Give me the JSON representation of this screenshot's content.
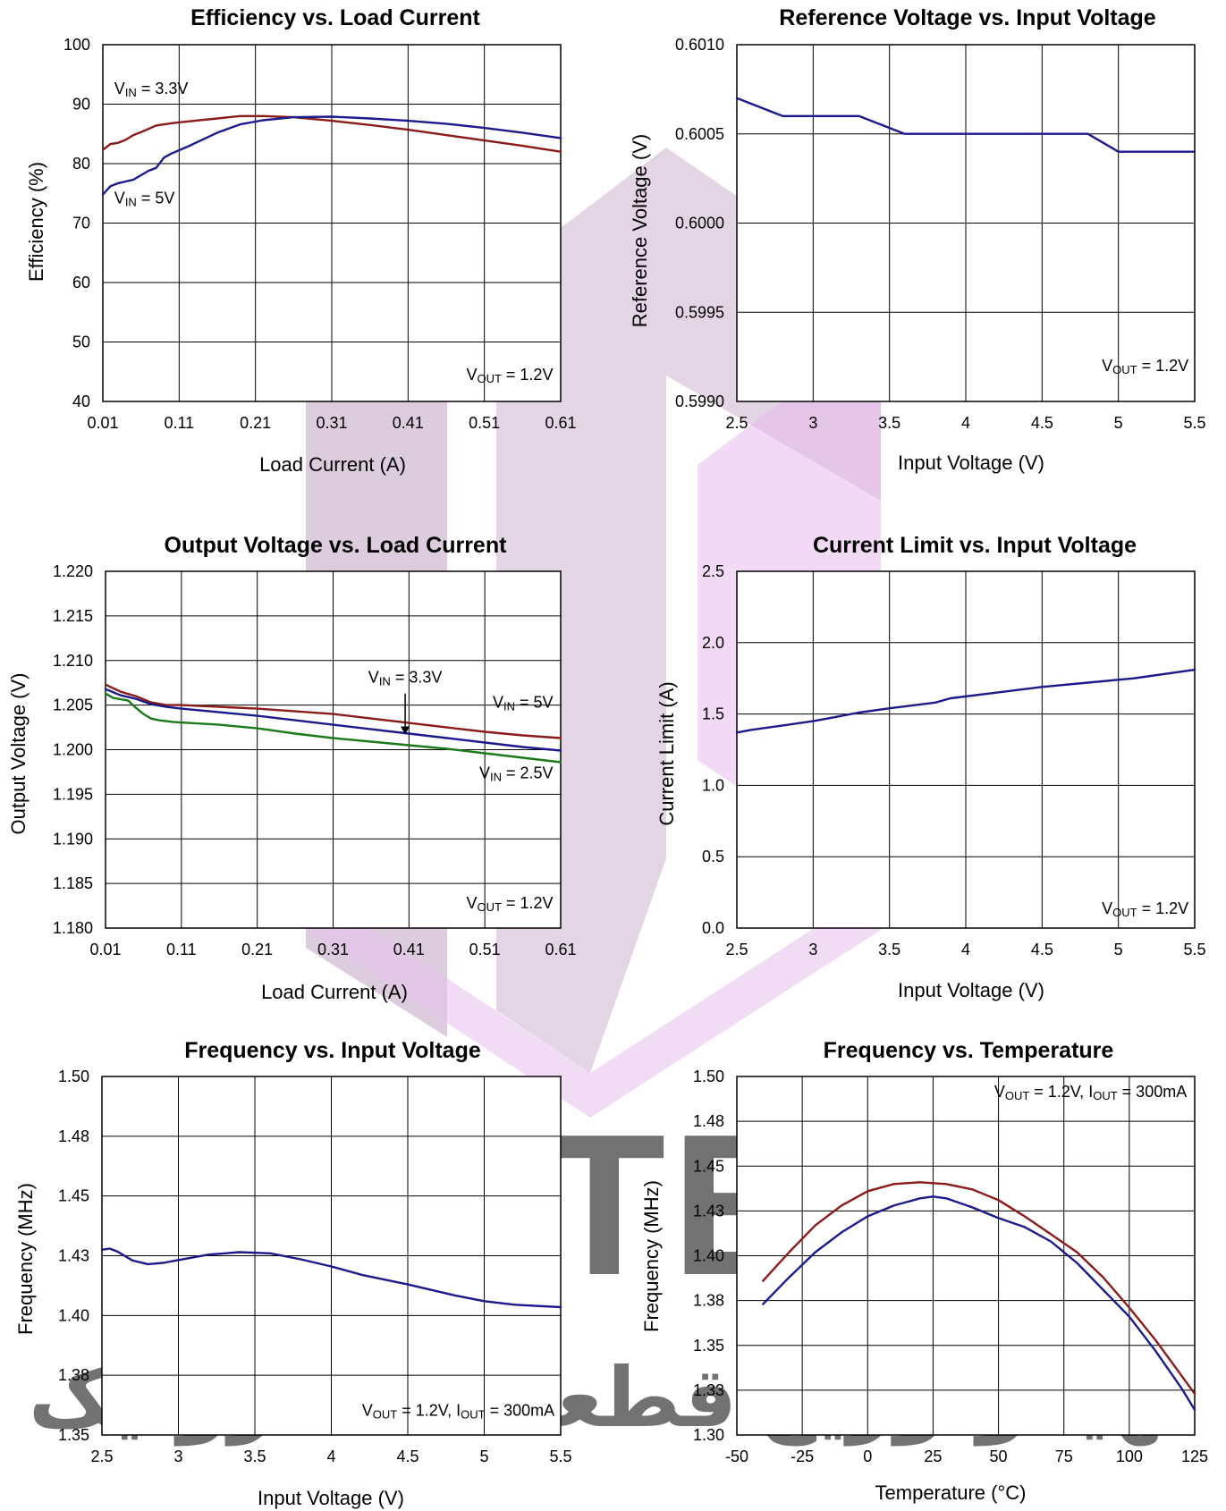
{
  "watermark": {
    "text": "SKYTECH",
    "subtitle": "تهیه‌وتوزیع قطعات الکترونیک"
  },
  "chart_data": [
    {
      "id": "c1",
      "type": "line",
      "title": "Efficiency vs. Load Current",
      "xlabel": "Load Current (A)",
      "ylabel": "Efficiency (%)",
      "xlim": [
        0.01,
        0.61
      ],
      "ylim": [
        40,
        100
      ],
      "xticks": [
        0.01,
        0.11,
        0.21,
        0.31,
        0.41,
        0.51,
        0.61
      ],
      "xtick_labels": [
        "0.01",
        "0.11",
        "0.21",
        "0.31",
        "0.41",
        "0.51",
        "0.61"
      ],
      "yticks": [
        40,
        50,
        60,
        70,
        80,
        90,
        100
      ],
      "ytick_labels": [
        "40",
        "50",
        "60",
        "70",
        "80",
        "90",
        "100"
      ],
      "grid": true,
      "annotations": [
        {
          "main": "V",
          "sub": "IN",
          "rest": " = 3.3V",
          "x": 0.025,
          "y": 91.7,
          "anchor": "start"
        },
        {
          "main": "V",
          "sub": "IN",
          "rest": " = 5V",
          "x": 0.025,
          "y": 73.3,
          "anchor": "start"
        },
        {
          "main": "V",
          "sub": "OUT",
          "rest": " = 1.2V",
          "x": 0.6,
          "y": 43.6,
          "anchor": "end"
        }
      ],
      "series": [
        {
          "color": "#8b1a1a",
          "x": [
            0.01,
            0.02,
            0.03,
            0.04,
            0.05,
            0.06,
            0.08,
            0.1,
            0.13,
            0.16,
            0.19,
            0.22,
            0.26,
            0.31,
            0.36,
            0.41,
            0.46,
            0.51,
            0.56,
            0.61
          ],
          "y": [
            82.3,
            83.3,
            83.5,
            84.0,
            84.8,
            85.3,
            86.4,
            86.8,
            87.2,
            87.6,
            88.0,
            88.0,
            87.8,
            87.2,
            86.5,
            85.7,
            84.8,
            83.9,
            83.0,
            82.0
          ]
        },
        {
          "color": "#1a1a8c",
          "x": [
            0.01,
            0.02,
            0.03,
            0.05,
            0.07,
            0.08,
            0.09,
            0.1,
            0.12,
            0.14,
            0.16,
            0.19,
            0.22,
            0.26,
            0.31,
            0.36,
            0.41,
            0.46,
            0.51,
            0.56,
            0.61
          ],
          "y": [
            74.8,
            76.2,
            76.7,
            77.3,
            78.8,
            79.3,
            81.0,
            81.7,
            82.8,
            84.0,
            85.2,
            86.6,
            87.3,
            87.8,
            87.9,
            87.6,
            87.2,
            86.7,
            86.0,
            85.2,
            84.3
          ]
        }
      ]
    },
    {
      "id": "c2",
      "type": "line",
      "title": "Reference Voltage vs. Input Voltage",
      "xlabel": "Input Voltage (V)",
      "ylabel": "Reference Voltage (V)",
      "xlim": [
        2.5,
        5.5
      ],
      "ylim": [
        0.599,
        0.601
      ],
      "xticks": [
        2.5,
        3,
        3.5,
        4,
        4.5,
        5,
        5.5
      ],
      "xtick_labels": [
        "2.5",
        "3",
        "3.5",
        "4",
        "4.5",
        "5",
        "5.5"
      ],
      "yticks": [
        0.599,
        0.5995,
        0.6,
        0.6005,
        0.601
      ],
      "ytick_labels": [
        "0.5990",
        "0.5995",
        "0.6000",
        "0.6005",
        "0.6010"
      ],
      "grid": true,
      "annotations": [
        {
          "main": "V",
          "sub": "OUT",
          "rest": " = 1.2V",
          "x": 5.46,
          "y": 0.59917,
          "anchor": "end"
        }
      ],
      "series": [
        {
          "color": "#1a1a8c",
          "x": [
            2.5,
            2.8,
            3.3,
            3.6,
            4.8,
            5.0,
            5.5
          ],
          "y": [
            0.6007,
            0.6006,
            0.6006,
            0.6005,
            0.6005,
            0.6004,
            0.6004
          ]
        }
      ]
    },
    {
      "id": "c3",
      "type": "line",
      "title": "Output Voltage vs. Load Current",
      "xlabel": "Load Current (A)",
      "ylabel": "Output Voltage (V)",
      "xlim": [
        0.01,
        0.61
      ],
      "ylim": [
        1.18,
        1.22
      ],
      "xticks": [
        0.01,
        0.11,
        0.21,
        0.31,
        0.41,
        0.51,
        0.61
      ],
      "xtick_labels": [
        "0.01",
        "0.11",
        "0.21",
        "0.31",
        "0.41",
        "0.51",
        "0.61"
      ],
      "yticks": [
        1.18,
        1.185,
        1.19,
        1.195,
        1.2,
        1.205,
        1.21,
        1.215,
        1.22
      ],
      "ytick_labels": [
        "1.180",
        "1.185",
        "1.190",
        "1.195",
        "1.200",
        "1.205",
        "1.210",
        "1.215",
        "1.220"
      ],
      "grid": true,
      "annotations": [
        {
          "main": "V",
          "sub": "IN",
          "rest": " = 3.3V",
          "x": 0.405,
          "y": 1.2075,
          "anchor": "middle"
        },
        {
          "main": "V",
          "sub": "IN",
          "rest": " = 5V",
          "x": 0.6,
          "y": 1.2047,
          "anchor": "end"
        },
        {
          "main": "V",
          "sub": "IN",
          "rest": " = 2.5V",
          "x": 0.6,
          "y": 1.1968,
          "anchor": "end"
        },
        {
          "main": "V",
          "sub": "OUT",
          "rest": " = 1.2V",
          "x": 0.6,
          "y": 1.1822,
          "anchor": "end"
        }
      ],
      "arrow": {
        "x": 0.405,
        "y1": 1.2063,
        "y2": 1.2017
      },
      "series": [
        {
          "color": "#8b1a1a",
          "x": [
            0.01,
            0.03,
            0.05,
            0.07,
            0.09,
            0.11,
            0.16,
            0.21,
            0.26,
            0.31,
            0.36,
            0.41,
            0.46,
            0.51,
            0.56,
            0.61
          ],
          "y": [
            1.2073,
            1.2065,
            1.206,
            1.2053,
            1.205,
            1.205,
            1.2048,
            1.2046,
            1.2043,
            1.204,
            1.2035,
            1.203,
            1.2025,
            1.202,
            1.2016,
            1.2013
          ]
        },
        {
          "color": "#1a1a8c",
          "x": [
            0.01,
            0.03,
            0.05,
            0.07,
            0.09,
            0.11,
            0.16,
            0.21,
            0.26,
            0.31,
            0.36,
            0.41,
            0.46,
            0.51,
            0.56,
            0.61
          ],
          "y": [
            1.2068,
            1.2061,
            1.2057,
            1.2051,
            1.2048,
            1.2046,
            1.2042,
            1.2038,
            1.2033,
            1.2028,
            1.2023,
            1.2018,
            1.2013,
            1.2008,
            1.2003,
            1.1999
          ]
        },
        {
          "color": "#1a7a1a",
          "x": [
            0.01,
            0.02,
            0.04,
            0.05,
            0.06,
            0.07,
            0.08,
            0.1,
            0.12,
            0.16,
            0.21,
            0.26,
            0.31,
            0.36,
            0.41,
            0.46,
            0.51,
            0.56,
            0.61
          ],
          "y": [
            1.2063,
            1.2058,
            1.2055,
            1.2047,
            1.204,
            1.2035,
            1.2033,
            1.2031,
            1.203,
            1.2028,
            1.2024,
            1.2018,
            1.2013,
            1.2009,
            1.2005,
            1.2001,
            1.1996,
            1.1991,
            1.1986
          ]
        }
      ]
    },
    {
      "id": "c4",
      "type": "line",
      "title": "Current Limit vs. Input Voltage",
      "xlabel": "Input Voltage (V)",
      "ylabel": "Current Limit (A)",
      "xlim": [
        2.5,
        5.5
      ],
      "ylim": [
        0,
        2.5
      ],
      "xticks": [
        2.5,
        3,
        3.5,
        4,
        4.5,
        5,
        5.5
      ],
      "xtick_labels": [
        "2.5",
        "3",
        "3.5",
        "4",
        "4.5",
        "5",
        "5.5"
      ],
      "yticks": [
        0,
        0.5,
        1,
        1.5,
        2,
        2.5
      ],
      "ytick_labels": [
        "0.0",
        "0.5",
        "1.0",
        "1.5",
        "2.0",
        "2.5"
      ],
      "grid": true,
      "annotations": [
        {
          "main": "V",
          "sub": "OUT",
          "rest": " = 1.2V",
          "x": 5.46,
          "y": 0.1,
          "anchor": "end"
        }
      ],
      "series": [
        {
          "color": "#1a1a8c",
          "x": [
            2.5,
            2.6,
            2.8,
            3.0,
            3.1,
            3.3,
            3.5,
            3.8,
            3.9,
            4.2,
            4.5,
            4.8,
            5.1,
            5.5
          ],
          "y": [
            1.37,
            1.39,
            1.42,
            1.45,
            1.47,
            1.51,
            1.54,
            1.58,
            1.61,
            1.65,
            1.69,
            1.72,
            1.75,
            1.81
          ]
        }
      ]
    },
    {
      "id": "c5",
      "type": "line",
      "title": "Frequency vs. Input Voltage",
      "xlabel": "Input Voltage (V)",
      "ylabel": "Frequency (MHz)",
      "xlim": [
        2.5,
        5.5
      ],
      "ylim": [
        1.35,
        1.5
      ],
      "xticks": [
        2.5,
        3,
        3.5,
        4,
        4.5,
        5,
        5.5
      ],
      "xtick_labels": [
        "2.5",
        "3",
        "3.5",
        "4",
        "4.5",
        "5",
        "5.5"
      ],
      "yticks": [
        1.35,
        1.375,
        1.4,
        1.425,
        1.45,
        1.475,
        1.5
      ],
      "ytick_labels": [
        "1.35",
        "1.38",
        "1.40",
        "1.43",
        "1.45",
        "1.48",
        "1.50"
      ],
      "grid": true,
      "annotations": [
        {
          "main": "V",
          "sub": "OUT",
          "rest": " = 1.2V, ",
          "main2": "I",
          "sub2": "OUT",
          "rest2": " = 300mA",
          "x": 5.46,
          "y": 1.358,
          "anchor": "end"
        }
      ],
      "series": [
        {
          "color": "#1a1a8c",
          "x": [
            2.5,
            2.55,
            2.6,
            2.7,
            2.8,
            2.9,
            3.0,
            3.2,
            3.4,
            3.6,
            3.8,
            4.0,
            4.2,
            4.5,
            4.8,
            5.0,
            5.2,
            5.5
          ],
          "y": [
            1.4275,
            1.428,
            1.4268,
            1.423,
            1.4215,
            1.422,
            1.4232,
            1.4255,
            1.4265,
            1.426,
            1.4235,
            1.4205,
            1.417,
            1.413,
            1.4085,
            1.406,
            1.4045,
            1.4035
          ]
        }
      ]
    },
    {
      "id": "c6",
      "type": "line",
      "title": "Frequency vs. Temperature",
      "xlabel": "Temperature (°C)",
      "ylabel": "Frequency (MHz)",
      "xlim": [
        -50,
        125
      ],
      "ylim": [
        1.3,
        1.5
      ],
      "xticks": [
        -50,
        -25,
        0,
        25,
        50,
        75,
        100,
        125
      ],
      "xtick_labels": [
        "-50",
        "-25",
        "0",
        "25",
        "50",
        "75",
        "100",
        "125"
      ],
      "yticks": [
        1.3,
        1.325,
        1.35,
        1.375,
        1.4,
        1.425,
        1.45,
        1.475,
        1.5
      ],
      "ytick_labels": [
        "1.30",
        "1.33",
        "1.35",
        "1.38",
        "1.40",
        "1.43",
        "1.45",
        "1.48",
        "1.50"
      ],
      "grid": true,
      "annotations": [
        {
          "main": "V",
          "sub": "OUT",
          "rest": " = 1.2V, ",
          "main2": "I",
          "sub2": "OUT",
          "rest2": " = 300mA",
          "x": 122,
          "y": 1.4885,
          "anchor": "end"
        }
      ],
      "series": [
        {
          "color": "#8b1a1a",
          "x": [
            -40,
            -30,
            -20,
            -10,
            0,
            10,
            20,
            30,
            40,
            50,
            60,
            70,
            80,
            90,
            100,
            110,
            120,
            125
          ],
          "y": [
            1.386,
            1.402,
            1.417,
            1.428,
            1.436,
            1.44,
            1.441,
            1.44,
            1.437,
            1.431,
            1.422,
            1.412,
            1.402,
            1.388,
            1.371,
            1.353,
            1.333,
            1.323
          ]
        },
        {
          "color": "#1a1a8c",
          "x": [
            -40,
            -30,
            -20,
            -10,
            0,
            10,
            20,
            25,
            30,
            40,
            50,
            60,
            70,
            80,
            90,
            100,
            110,
            120,
            125
          ],
          "y": [
            1.373,
            1.388,
            1.402,
            1.413,
            1.422,
            1.428,
            1.432,
            1.433,
            1.432,
            1.427,
            1.421,
            1.416,
            1.408,
            1.396,
            1.381,
            1.366,
            1.347,
            1.326,
            1.314
          ]
        }
      ]
    }
  ]
}
